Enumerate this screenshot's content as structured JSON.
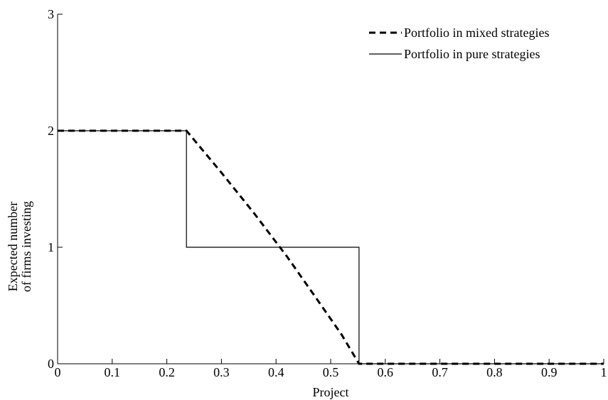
{
  "chart_data": {
    "type": "line",
    "xlabel": "Project",
    "ylabel_lines": [
      "Expected number",
      "of firms investing"
    ],
    "xlim": [
      0,
      1
    ],
    "ylim": [
      0,
      3
    ],
    "x_ticks": [
      0,
      0.1,
      0.2,
      0.3,
      0.4,
      0.5,
      0.6,
      0.7,
      0.8,
      0.9,
      1
    ],
    "x_tick_labels": [
      "0",
      "0.1",
      "0.2",
      "0.3",
      "0.4",
      "0.5",
      "0.6",
      "0.7",
      "0.8",
      "0.9",
      "1"
    ],
    "y_ticks": [
      0,
      1,
      2,
      3
    ],
    "y_tick_labels": [
      "0",
      "1",
      "2",
      "3"
    ],
    "grid": false,
    "legend_position": "top-right",
    "series": [
      {
        "name": "Portfolio in mixed strategies",
        "style": "dashed",
        "color": "#000000",
        "x": [
          0,
          0.236,
          0.3,
          0.36,
          0.42,
          0.48,
          0.52,
          0.552,
          1
        ],
        "y": [
          2,
          2,
          1.64,
          1.29,
          0.92,
          0.52,
          0.25,
          0,
          0
        ]
      },
      {
        "name": "Portfolio in pure strategies",
        "style": "solid",
        "color": "#000000",
        "x": [
          0,
          0.236,
          0.236,
          0.552,
          0.552,
          1
        ],
        "y": [
          2,
          2,
          1,
          1,
          0,
          0
        ]
      }
    ]
  }
}
